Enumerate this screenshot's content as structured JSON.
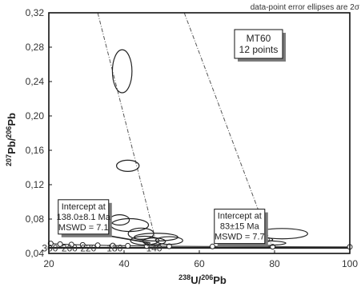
{
  "chart_data": {
    "type": "scatter",
    "subtype": "tera-wasserburg-concordia",
    "xlabel_parts": [
      "238",
      "U/",
      "206",
      "Pb"
    ],
    "ylabel_parts": [
      "207",
      "Pb/",
      "206",
      "Pb"
    ],
    "xlim": [
      20,
      100
    ],
    "ylim": [
      0.04,
      0.32
    ],
    "xticks": [
      20,
      40,
      60,
      80,
      100
    ],
    "yticks": [
      0.04,
      0.08,
      0.12,
      0.16,
      0.2,
      0.24,
      0.28,
      0.32
    ],
    "ytick_labels": [
      "0,04",
      "0,08",
      "0,12",
      "0,16",
      "0,20",
      "0,24",
      "0,28",
      "0,32"
    ],
    "note": "data-point error ellipses are 2σ",
    "sample_box": {
      "line1": "MT60",
      "line2": "12 points"
    },
    "concordia": {
      "points": [
        {
          "x": 20.5,
          "y": 0.0515
        },
        {
          "x": 23.0,
          "y": 0.0508
        },
        {
          "x": 26.0,
          "y": 0.0503
        },
        {
          "x": 29.0,
          "y": 0.0499
        },
        {
          "x": 33.0,
          "y": 0.0495
        },
        {
          "x": 37.0,
          "y": 0.0492
        },
        {
          "x": 41.0,
          "y": 0.0489
        },
        {
          "x": 46.0,
          "y": 0.0486
        },
        {
          "x": 52.0,
          "y": 0.0484
        },
        {
          "x": 63.5,
          "y": 0.0481
        },
        {
          "x": 79.5,
          "y": 0.0478
        },
        {
          "x": 100.0,
          "y": 0.0476
        }
      ],
      "age_labels": [
        {
          "text": "300",
          "x": 20.3,
          "y": 0.0425
        },
        {
          "text": "260",
          "x": 25.5,
          "y": 0.0425
        },
        {
          "text": "220",
          "x": 30.5,
          "y": 0.0425
        },
        {
          "text": "180",
          "x": 37.5,
          "y": 0.0425
        },
        {
          "text": "140",
          "x": 48.0,
          "y": 0.0425
        }
      ]
    },
    "ellipses": [
      {
        "cx": 39.5,
        "cy": 0.252,
        "rx": 2.6,
        "ry": 0.025
      },
      {
        "cx": 41.0,
        "cy": 0.142,
        "rx": 3.0,
        "ry": 0.0065
      },
      {
        "cx": 38.8,
        "cy": 0.079,
        "rx": 2.6,
        "ry": 0.006
      },
      {
        "cx": 41.5,
        "cy": 0.073,
        "rx": 5.0,
        "ry": 0.0075
      },
      {
        "cx": 44.5,
        "cy": 0.063,
        "rx": 3.4,
        "ry": 0.0065
      },
      {
        "cx": 45.5,
        "cy": 0.055,
        "rx": 3.8,
        "ry": 0.005
      },
      {
        "cx": 48.5,
        "cy": 0.059,
        "rx": 5.8,
        "ry": 0.0045
      },
      {
        "cx": 52.0,
        "cy": 0.055,
        "rx": 3.6,
        "ry": 0.0045
      },
      {
        "cx": 75.5,
        "cy": 0.056,
        "rx": 4.0,
        "ry": 0.003
      },
      {
        "cx": 75.0,
        "cy": 0.052,
        "rx": 8.0,
        "ry": 0.003
      },
      {
        "cx": 82.0,
        "cy": 0.063,
        "rx": 6.8,
        "ry": 0.006
      },
      {
        "cx": 48.0,
        "cy": 0.054,
        "rx": 3.0,
        "ry": 0.004
      }
    ],
    "discordia_lines": [
      {
        "x1": 33.0,
        "y1": 0.32,
        "x2": 49.0,
        "y2": 0.045
      },
      {
        "x1": 56.0,
        "y1": 0.32,
        "x2": 79.5,
        "y2": 0.046
      }
    ],
    "regression_line": {
      "x1": 20,
      "y1": 0.0465,
      "x2": 100,
      "y2": 0.0465
    },
    "intercept_boxes": [
      {
        "lines": [
          "Intercept at",
          "138.0±8.1 Ma",
          "MSWD = 7.1"
        ],
        "anchor": {
          "x": 22.5,
          "y": 0.1025
        },
        "pointer_to": {
          "x": 47.0,
          "y": 0.052
        }
      },
      {
        "lines": [
          "Intercept at",
          "83±15 Ma",
          "MSWD = 7.7"
        ],
        "anchor": {
          "x": 64.0,
          "y": 0.0915
        },
        "pointer_to": {
          "x": 77.5,
          "y": 0.05
        }
      }
    ]
  },
  "colors": {
    "axis": "#111111",
    "ellipse": "#222222",
    "line": "#222222",
    "dash": "#555555",
    "shadow": "#7a7a7a",
    "box_fill": "#ffffff"
  }
}
